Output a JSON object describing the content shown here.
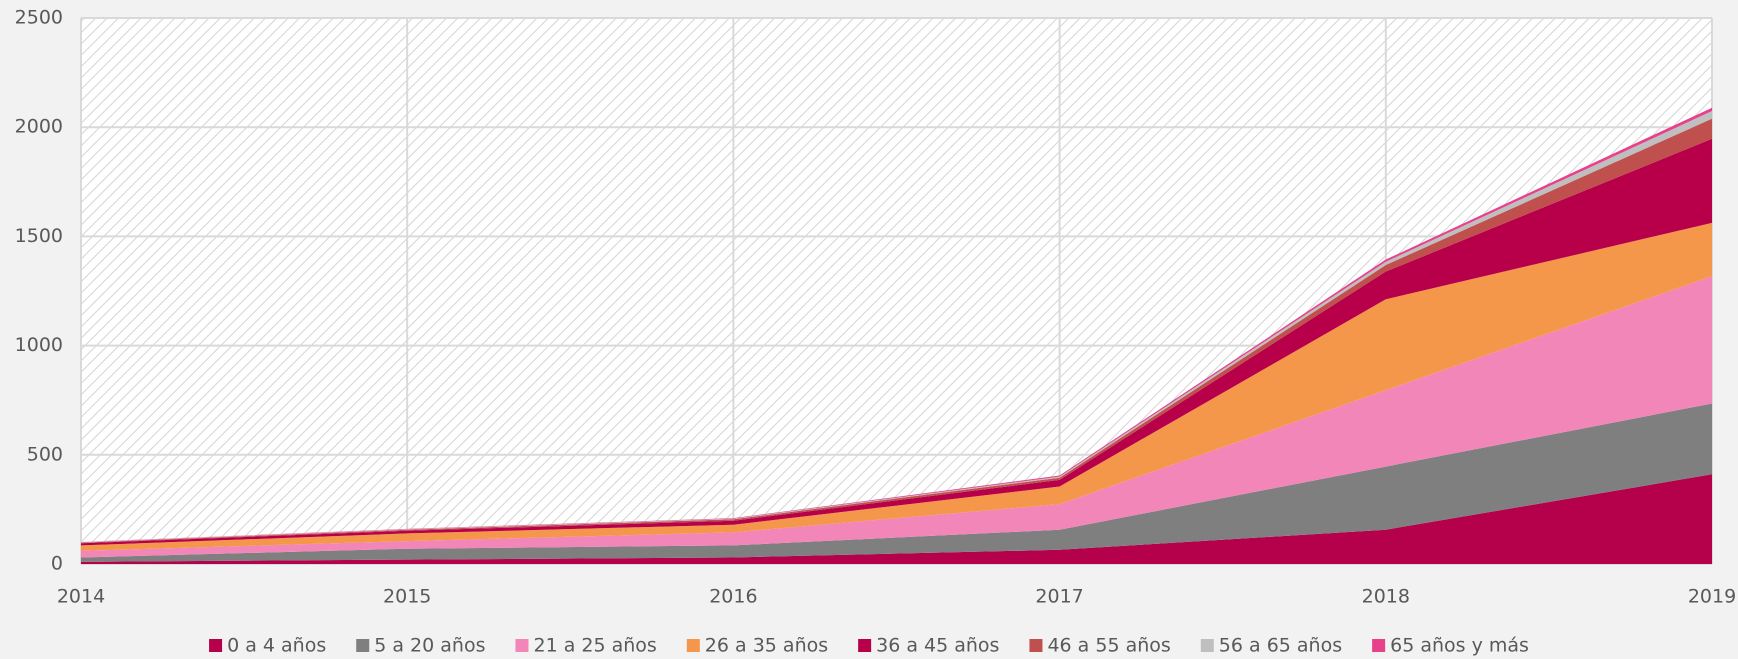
{
  "chart_data": {
    "type": "stacked_area",
    "categories": [
      "2014",
      "2015",
      "2016",
      "2017",
      "2018",
      "2019"
    ],
    "series": [
      {
        "name": "0 a 4 años",
        "color": "#b5004b",
        "values": [
          10,
          20,
          30,
          65,
          157,
          411
        ]
      },
      {
        "name": "5 a 20 años",
        "color": "#7f7f7f",
        "values": [
          20,
          50,
          55,
          92,
          289,
          324
        ]
      },
      {
        "name": "21 a 25 años",
        "color": "#f386b8",
        "values": [
          30,
          35,
          60,
          117,
          350,
          583
        ]
      },
      {
        "name": "26 a 35 años",
        "color": "#f5974a",
        "values": [
          25,
          35,
          35,
          81,
          416,
          244
        ]
      },
      {
        "name": "36 a 45 años",
        "color": "#b8004a",
        "values": [
          10,
          12,
          18,
          30,
          127,
          385
        ]
      },
      {
        "name": "46 a 55 años",
        "color": "#c0504d",
        "values": [
          3,
          5,
          7,
          10,
          30,
          92
        ]
      },
      {
        "name": "56 a 65 años",
        "color": "#bfbfbf",
        "values": [
          2,
          2,
          3,
          5,
          15,
          35
        ]
      },
      {
        "name": "65 años y más",
        "color": "#e8418c",
        "values": [
          1,
          2,
          2,
          5,
          10,
          15
        ]
      }
    ],
    "ylim": [
      0,
      2500
    ],
    "yticks": [
      0,
      500,
      1000,
      1500,
      2000,
      2500
    ],
    "grid": true,
    "legend": "bottom"
  }
}
